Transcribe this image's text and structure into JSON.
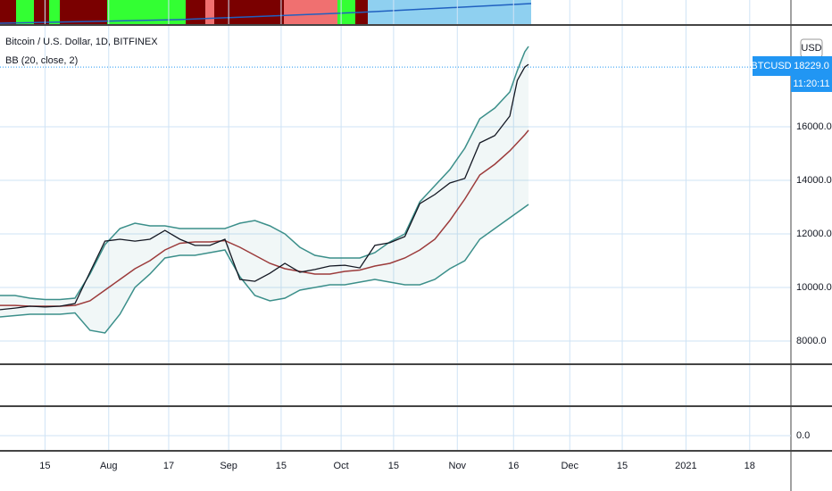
{
  "chart_data": {
    "type": "line",
    "title": "Bitcoin / U.S. Dollar, 1D, BITFINEX",
    "indicator": "BB (20, close, 2)",
    "currency": "USD",
    "symbol": "BTCUSD",
    "last_price": "18229.0",
    "countdown": "11:20:11",
    "lower_pane_label": "0.0",
    "grid": true,
    "x": [
      0,
      4,
      8,
      12,
      16,
      20,
      24,
      28,
      32,
      36,
      40,
      44,
      48,
      52,
      56,
      60,
      64,
      68,
      72,
      76,
      80,
      84,
      88,
      92,
      96,
      100,
      104,
      108,
      112,
      116,
      120,
      124,
      128,
      132,
      136,
      138,
      140,
      141
    ],
    "xlim": [
      0,
      211
    ],
    "xticks": [
      {
        "value": 12,
        "label": "15"
      },
      {
        "value": 29,
        "label": "Aug"
      },
      {
        "value": 45,
        "label": "17"
      },
      {
        "value": 61,
        "label": "Sep"
      },
      {
        "value": 75,
        "label": "15"
      },
      {
        "value": 91,
        "label": "Oct"
      },
      {
        "value": 105,
        "label": "15"
      },
      {
        "value": 122,
        "label": "Nov"
      },
      {
        "value": 137,
        "label": "16"
      },
      {
        "value": 152,
        "label": "Dec"
      },
      {
        "value": 166,
        "label": "15"
      },
      {
        "value": 183,
        "label": "2021"
      },
      {
        "value": 200,
        "label": "18"
      }
    ],
    "ylim": [
      7133,
      19800
    ],
    "yticks": [
      {
        "value": 8000,
        "label": "8000.0"
      },
      {
        "value": 10000,
        "label": "10000.0"
      },
      {
        "value": 12000,
        "label": "12000.0"
      },
      {
        "value": 14000,
        "label": "14000.0"
      },
      {
        "value": 16000,
        "label": "16000.0"
      }
    ],
    "series": [
      {
        "color": "#131722",
        "values": [
          9170,
          9230,
          9300,
          9270,
          9300,
          9400,
          10570,
          11730,
          11800,
          11730,
          11800,
          12130,
          11800,
          11570,
          11570,
          11800,
          10300,
          10230,
          10530,
          10900,
          10570,
          10670,
          10800,
          10830,
          10730,
          11570,
          11670,
          11900,
          13130,
          13470,
          13900,
          14070,
          15400,
          15670,
          16400,
          17730,
          18230,
          18330
        ]
      },
      {
        "color": "#3b8f8a",
        "values": [
          9700,
          9700,
          9600,
          9550,
          9550,
          9600,
          10500,
          11600,
          12200,
          12400,
          12300,
          12300,
          12200,
          12200,
          12200,
          12200,
          12400,
          12500,
          12300,
          12000,
          11500,
          11200,
          11100,
          11100,
          11100,
          11300,
          11700,
          12000,
          13200,
          13800,
          14400,
          15200,
          16300,
          16700,
          17300,
          18100,
          18800,
          19000
        ]
      },
      {
        "color": "#9c3b3b",
        "values": [
          9330,
          9330,
          9300,
          9300,
          9300,
          9330,
          9500,
          9900,
          10300,
          10700,
          11000,
          11400,
          11650,
          11700,
          11700,
          11750,
          11500,
          11200,
          10900,
          10700,
          10600,
          10500,
          10500,
          10600,
          10650,
          10800,
          10900,
          11100,
          11400,
          11800,
          12500,
          13300,
          14200,
          14600,
          15100,
          15400,
          15700,
          15870
        ]
      },
      {
        "color": "#3b8f8a",
        "values": [
          8900,
          8950,
          9000,
          9000,
          9000,
          9050,
          8400,
          8300,
          9000,
          10000,
          10500,
          11100,
          11200,
          11200,
          11300,
          11400,
          10400,
          9700,
          9500,
          9600,
          9900,
          10000,
          10100,
          10100,
          10200,
          10300,
          10200,
          10100,
          10100,
          10300,
          10700,
          11000,
          11800,
          12200,
          12600,
          12800,
          13000,
          13100
        ]
      }
    ]
  }
}
